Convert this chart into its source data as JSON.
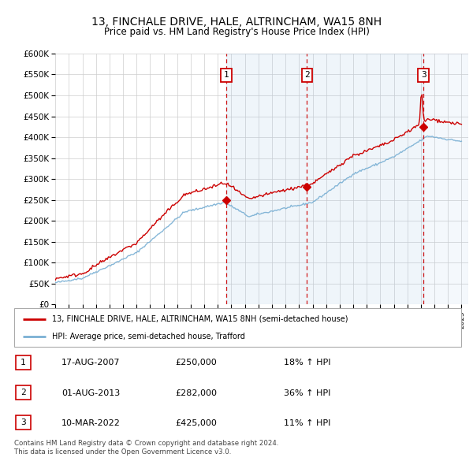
{
  "title": "13, FINCHALE DRIVE, HALE, ALTRINCHAM, WA15 8NH",
  "subtitle": "Price paid vs. HM Land Registry's House Price Index (HPI)",
  "hpi_color": "#7ab0d4",
  "price_color": "#cc0000",
  "vline_color": "#cc0000",
  "shade_color": "#dde8f5",
  "purchase_dates": [
    2007.63,
    2013.58,
    2022.19
  ],
  "purchase_prices": [
    250000,
    282000,
    425000
  ],
  "purchase_labels": [
    "1",
    "2",
    "3"
  ],
  "purchase_info": [
    [
      "1",
      "17-AUG-2007",
      "£250,000",
      "18% ↑ HPI"
    ],
    [
      "2",
      "01-AUG-2013",
      "£282,000",
      "36% ↑ HPI"
    ],
    [
      "3",
      "10-MAR-2022",
      "£425,000",
      "11% ↑ HPI"
    ]
  ],
  "legend_labels": [
    "13, FINCHALE DRIVE, HALE, ALTRINCHAM, WA15 8NH (semi-detached house)",
    "HPI: Average price, semi-detached house, Trafford"
  ],
  "footer": "Contains HM Land Registry data © Crown copyright and database right 2024.\nThis data is licensed under the Open Government Licence v3.0.",
  "ylim": [
    0,
    600000
  ],
  "yticks": [
    0,
    50000,
    100000,
    150000,
    200000,
    250000,
    300000,
    350000,
    400000,
    450000,
    500000,
    550000,
    600000
  ],
  "xmin": 1995.0,
  "xmax": 2025.5,
  "background_color": "#ffffff",
  "plot_bg_color": "#ffffff",
  "grid_color": "#cccccc"
}
